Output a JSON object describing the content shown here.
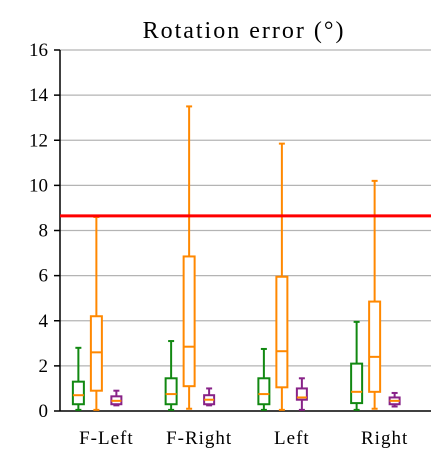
{
  "chart_data": {
    "type": "box",
    "title": "Rotation error (°)",
    "xlabel": "",
    "ylabel": "",
    "ylim": [
      0,
      16
    ],
    "yticks": [
      0,
      2,
      4,
      6,
      8,
      10,
      12,
      14,
      16
    ],
    "grid": "horizontal",
    "categories": [
      "F-Left",
      "F-Right",
      "Left",
      "Right"
    ],
    "threshold": {
      "value": 8.65,
      "color": "#ff0000"
    },
    "series": [
      {
        "color": "#118811",
        "boxes": [
          {
            "min": 0.05,
            "q1": 0.3,
            "median": 0.7,
            "q3": 1.3,
            "max": 2.8
          },
          {
            "min": 0.05,
            "q1": 0.3,
            "median": 0.75,
            "q3": 1.45,
            "max": 3.1
          },
          {
            "min": 0.05,
            "q1": 0.3,
            "median": 0.75,
            "q3": 1.45,
            "max": 2.75
          },
          {
            "min": 0.05,
            "q1": 0.35,
            "median": 0.85,
            "q3": 2.1,
            "max": 3.95
          }
        ]
      },
      {
        "color": "#ff8800",
        "boxes": [
          {
            "min": 0.05,
            "q1": 0.9,
            "median": 2.6,
            "q3": 4.2,
            "max": 8.6
          },
          {
            "min": 0.1,
            "q1": 1.1,
            "median": 2.85,
            "q3": 6.85,
            "max": 13.5
          },
          {
            "min": 0.05,
            "q1": 1.05,
            "median": 2.65,
            "q3": 5.95,
            "max": 11.85
          },
          {
            "min": 0.1,
            "q1": 0.85,
            "median": 2.4,
            "q3": 4.85,
            "max": 10.2
          }
        ]
      },
      {
        "color": "#882288",
        "boxes": [
          {
            "min": 0.25,
            "q1": 0.3,
            "median": 0.45,
            "q3": 0.65,
            "max": 0.9
          },
          {
            "min": 0.25,
            "q1": 0.3,
            "median": 0.5,
            "q3": 0.7,
            "max": 1.0
          },
          {
            "min": 0.05,
            "q1": 0.5,
            "median": 0.6,
            "q3": 1.0,
            "max": 1.45
          },
          {
            "min": 0.2,
            "q1": 0.3,
            "median": 0.45,
            "q3": 0.6,
            "max": 0.8
          }
        ]
      }
    ]
  }
}
